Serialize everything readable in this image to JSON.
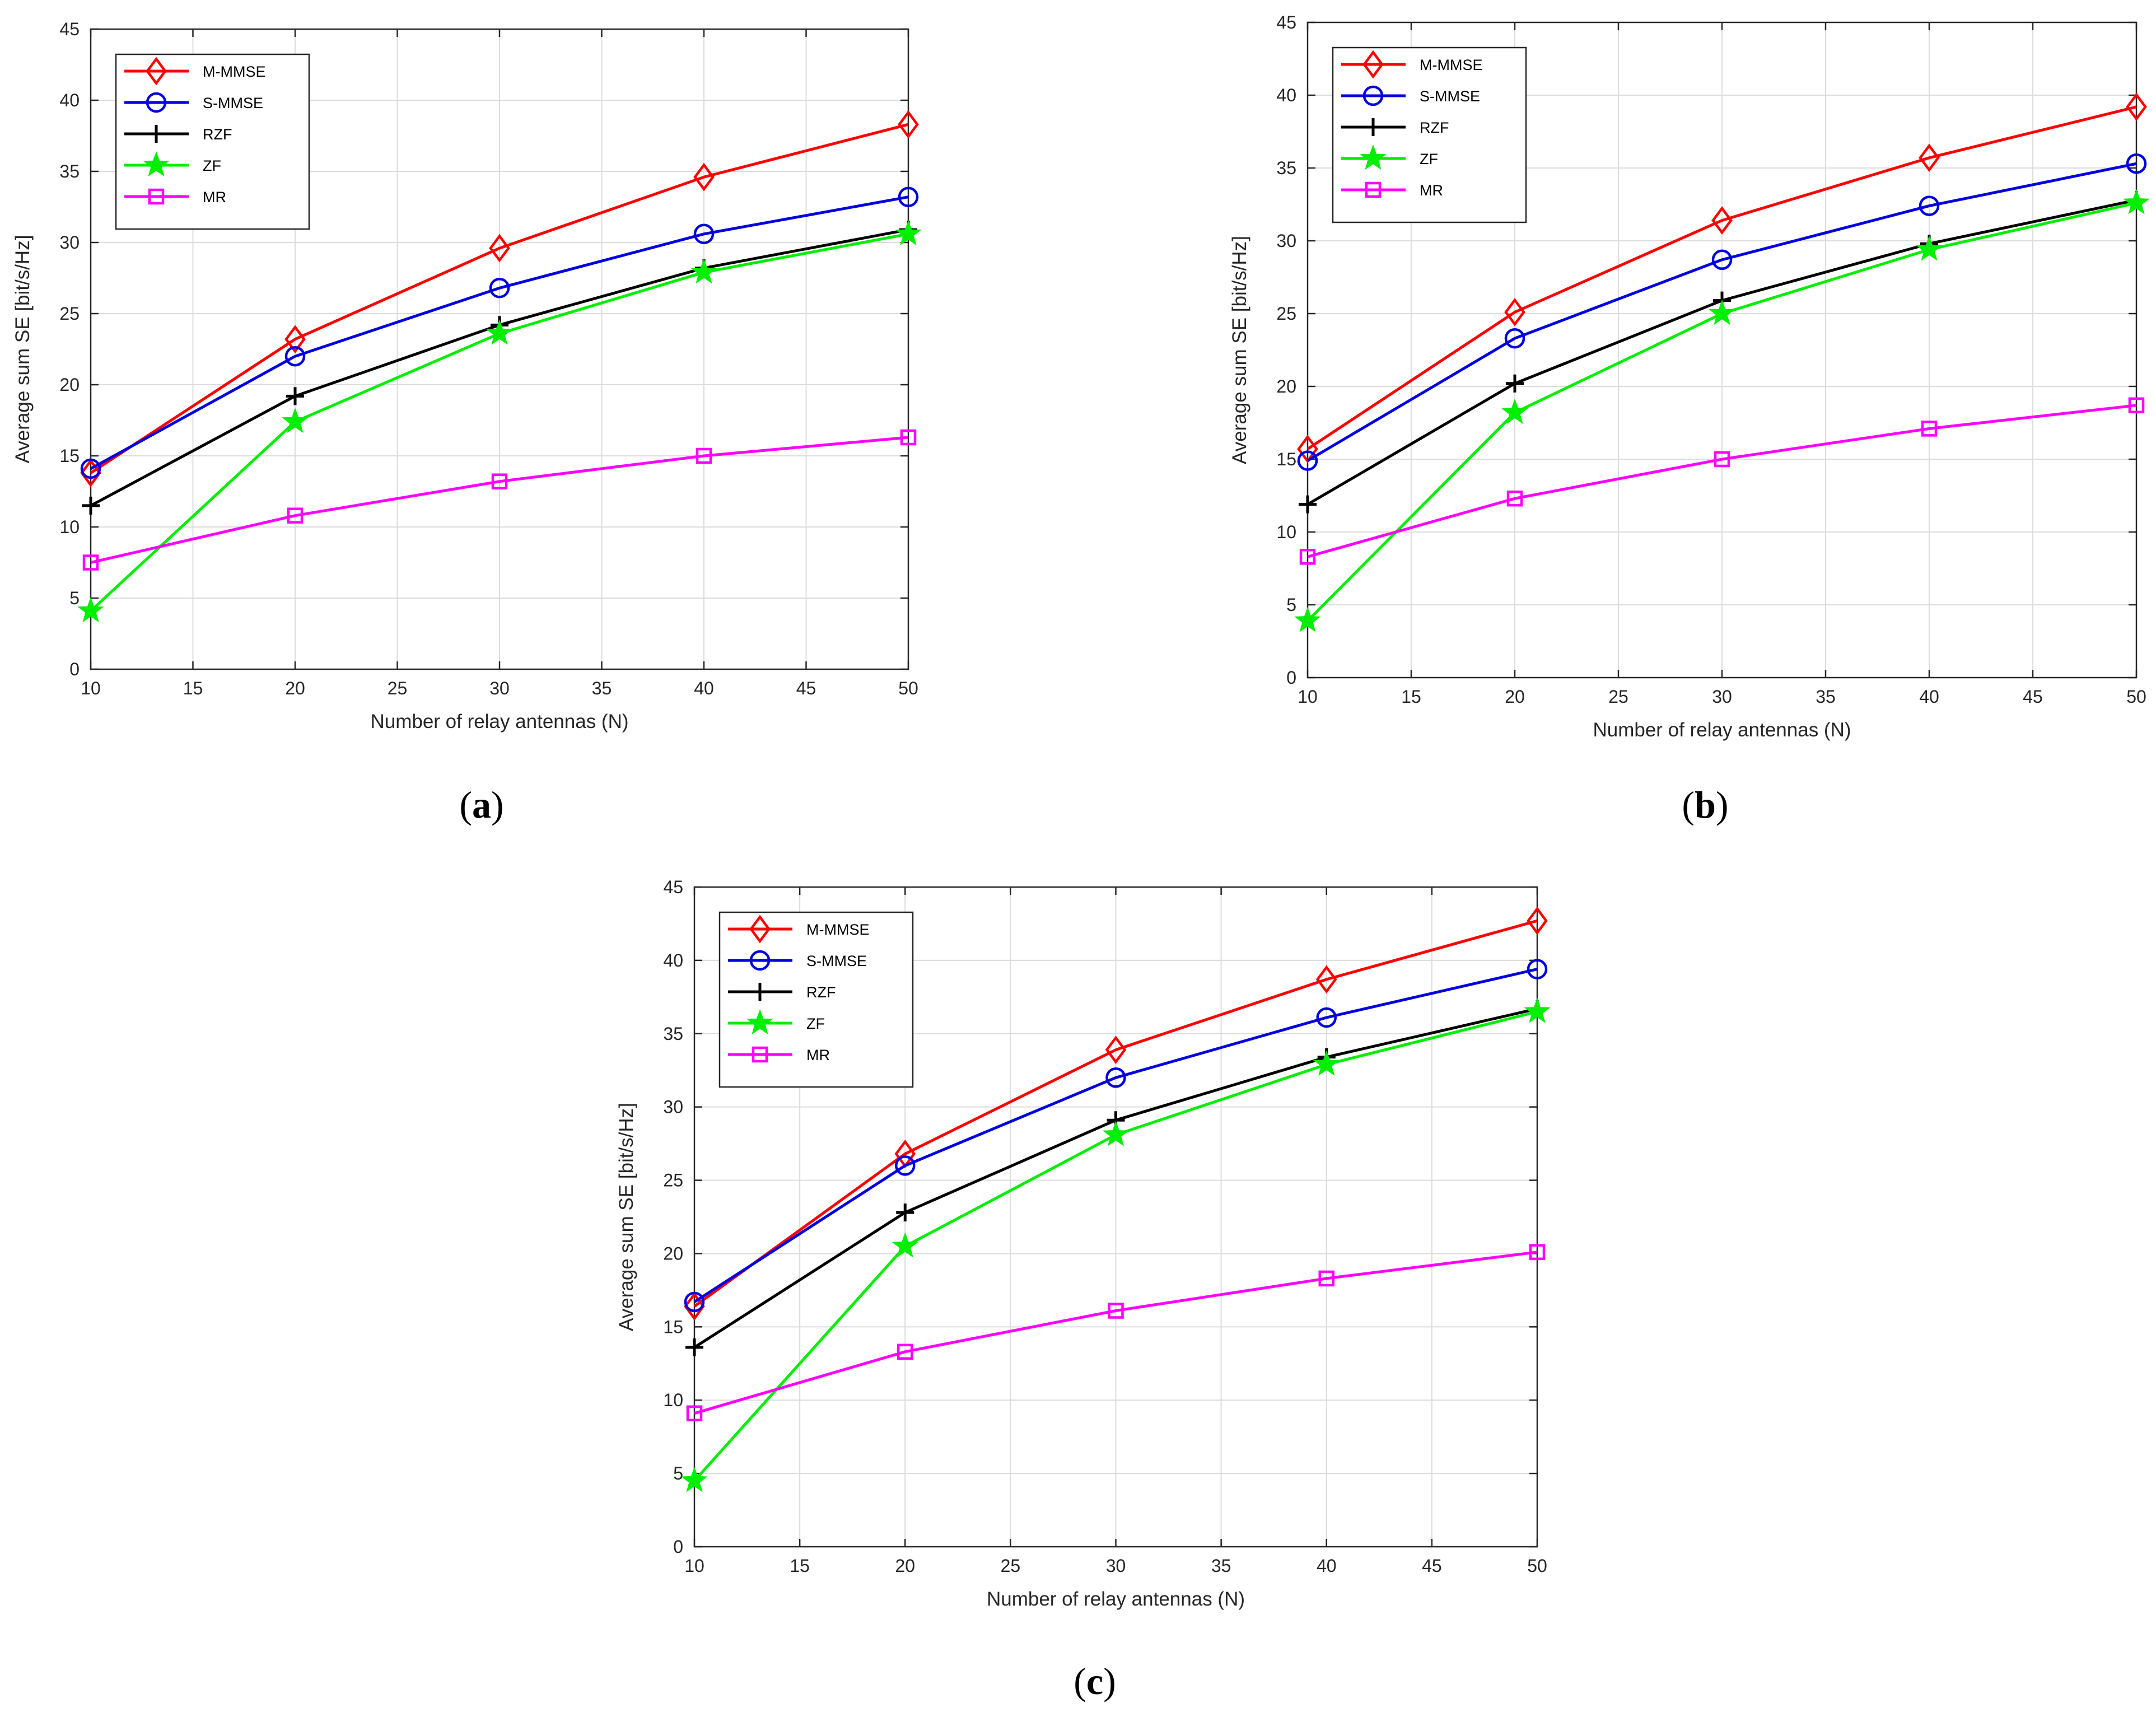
{
  "colors": {
    "M-MMSE": "#ff0000",
    "S-MMSE": "#0000e0",
    "RZF": "#000000",
    "ZF": "#00ee00",
    "MR": "#ff00ff",
    "grid": "#dcdcdc",
    "axis": "#262626"
  },
  "markers": {
    "M-MMSE": "diamond",
    "S-MMSE": "circle",
    "RZF": "plus",
    "ZF": "star",
    "MR": "square"
  },
  "chart_data": [
    {
      "type": "line",
      "panel": "a",
      "caption_open": "(",
      "caption_letter": "a",
      "caption_close": ")",
      "xlabel": "Number of relay antennas (N)",
      "ylabel": "Average sum SE [bit/s/Hz]",
      "xlim": [
        10,
        50
      ],
      "ylim": [
        0,
        45
      ],
      "xticks": [
        10,
        15,
        20,
        25,
        30,
        35,
        40,
        45,
        50
      ],
      "yticks": [
        0,
        5,
        10,
        15,
        20,
        25,
        30,
        35,
        40,
        45
      ],
      "grid": true,
      "legend_position": "top-left",
      "x": [
        10,
        20,
        30,
        40,
        50
      ],
      "series": [
        {
          "name": "M-MMSE",
          "values": [
            13.8,
            23.2,
            29.6,
            34.6,
            38.3
          ]
        },
        {
          "name": "S-MMSE",
          "values": [
            14.1,
            22.0,
            26.8,
            30.6,
            33.2
          ]
        },
        {
          "name": "RZF",
          "values": [
            11.5,
            19.2,
            24.2,
            28.2,
            30.9
          ]
        },
        {
          "name": "ZF",
          "values": [
            4.1,
            17.4,
            23.6,
            27.9,
            30.6
          ]
        },
        {
          "name": "MR",
          "values": [
            7.5,
            10.8,
            13.2,
            15.0,
            16.3
          ]
        }
      ]
    },
    {
      "type": "line",
      "panel": "b",
      "caption_open": "(",
      "caption_letter": "b",
      "caption_close": ")",
      "xlabel": "Number of relay antennas (N)",
      "ylabel": "Average sum SE [bit/s/Hz]",
      "xlim": [
        10,
        50
      ],
      "ylim": [
        0,
        45
      ],
      "xticks": [
        10,
        15,
        20,
        25,
        30,
        35,
        40,
        45,
        50
      ],
      "yticks": [
        0,
        5,
        10,
        15,
        20,
        25,
        30,
        35,
        40,
        45
      ],
      "grid": true,
      "legend_position": "top-left",
      "x": [
        10,
        20,
        30,
        40,
        50
      ],
      "series": [
        {
          "name": "M-MMSE",
          "values": [
            15.7,
            25.1,
            31.4,
            35.7,
            39.2
          ]
        },
        {
          "name": "S-MMSE",
          "values": [
            14.9,
            23.3,
            28.7,
            32.4,
            35.3
          ]
        },
        {
          "name": "RZF",
          "values": [
            11.9,
            20.2,
            25.9,
            29.8,
            32.8
          ]
        },
        {
          "name": "ZF",
          "values": [
            3.9,
            18.2,
            25.0,
            29.4,
            32.6
          ]
        },
        {
          "name": "MR",
          "values": [
            8.3,
            12.3,
            15.0,
            17.1,
            18.7
          ]
        }
      ]
    },
    {
      "type": "line",
      "panel": "c",
      "caption_open": "(",
      "caption_letter": "c",
      "caption_close": ")",
      "xlabel": "Number of relay antennas (N)",
      "ylabel": "Average sum SE [bit/s/Hz]",
      "xlim": [
        10,
        50
      ],
      "ylim": [
        0,
        45
      ],
      "xticks": [
        10,
        15,
        20,
        25,
        30,
        35,
        40,
        45,
        50
      ],
      "yticks": [
        0,
        5,
        10,
        15,
        20,
        25,
        30,
        35,
        40,
        45
      ],
      "grid": true,
      "legend_position": "top-left",
      "x": [
        10,
        20,
        30,
        40,
        50
      ],
      "series": [
        {
          "name": "M-MMSE",
          "values": [
            16.4,
            26.8,
            33.9,
            38.7,
            42.7
          ]
        },
        {
          "name": "S-MMSE",
          "values": [
            16.7,
            26.0,
            32.0,
            36.1,
            39.4
          ]
        },
        {
          "name": "RZF",
          "values": [
            13.6,
            22.8,
            29.1,
            33.4,
            36.7
          ]
        },
        {
          "name": "ZF",
          "values": [
            4.5,
            20.5,
            28.1,
            32.9,
            36.5
          ]
        },
        {
          "name": "MR",
          "values": [
            9.1,
            13.3,
            16.1,
            18.3,
            20.1
          ]
        }
      ]
    }
  ]
}
